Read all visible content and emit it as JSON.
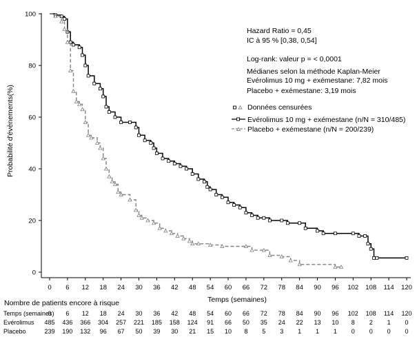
{
  "chart_data": {
    "type": "line",
    "title": "",
    "xlabel": "Temps (semaines)",
    "ylabel": "Probabilité d'évènements(%)",
    "xlim": [
      0,
      120
    ],
    "ylim": [
      0,
      100
    ],
    "xticks": [
      "0",
      "6",
      "12",
      "18",
      "24",
      "30",
      "36",
      "42",
      "48",
      "54",
      "60",
      "66",
      "72",
      "78",
      "84",
      "90",
      "96",
      "102",
      "108",
      "114",
      "120"
    ],
    "yticks": [
      "0",
      "20",
      "40",
      "60",
      "80",
      "100"
    ],
    "grid": false,
    "legend_position": "right",
    "legend_title": "Données censurées",
    "annotations": {
      "hr": "Hazard Ratio = 0,45",
      "ic": "IC à 95 % [0,38, 0,54]",
      "logrank": "Log-rank: valeur p = < 0,0001",
      "medians_title": "Médianes selon la méthode Kaplan-Meier",
      "median_evero": "Evérolimus 10 mg + exémestane: 7,82 mois",
      "median_placebo": "Placebo + exémestane: 3,19 mois"
    },
    "series": [
      {
        "name": "Evérolimus 10 mg + exémestane (n/N = 310/485)",
        "color": "#000000",
        "marker": "square",
        "points": [
          [
            0,
            100
          ],
          [
            2,
            99.5
          ],
          [
            4,
            99
          ],
          [
            5,
            98
          ],
          [
            6,
            93
          ],
          [
            7,
            89
          ],
          [
            8,
            88
          ],
          [
            10,
            87
          ],
          [
            11,
            84
          ],
          [
            12,
            80
          ],
          [
            13,
            76
          ],
          [
            15,
            73
          ],
          [
            17,
            71
          ],
          [
            18,
            68
          ],
          [
            19,
            64
          ],
          [
            20,
            62
          ],
          [
            22,
            60
          ],
          [
            24,
            58
          ],
          [
            27,
            58
          ],
          [
            29,
            56
          ],
          [
            30,
            53
          ],
          [
            32,
            51
          ],
          [
            34,
            50
          ],
          [
            35,
            48
          ],
          [
            36,
            46
          ],
          [
            38,
            44
          ],
          [
            40,
            43
          ],
          [
            42,
            42
          ],
          [
            44,
            41
          ],
          [
            46,
            40
          ],
          [
            48,
            38
          ],
          [
            50,
            36
          ],
          [
            52,
            35
          ],
          [
            53,
            33
          ],
          [
            54,
            32
          ],
          [
            56,
            30
          ],
          [
            58,
            29
          ],
          [
            60,
            27
          ],
          [
            62,
            26
          ],
          [
            64,
            25
          ],
          [
            66,
            23
          ],
          [
            68,
            22
          ],
          [
            70,
            21
          ],
          [
            72,
            21
          ],
          [
            74,
            20
          ],
          [
            78,
            20
          ],
          [
            80,
            19
          ],
          [
            84,
            19
          ],
          [
            86,
            17
          ],
          [
            90,
            16
          ],
          [
            92,
            15
          ],
          [
            96,
            15
          ],
          [
            102,
            15
          ],
          [
            104,
            14
          ],
          [
            106,
            14
          ],
          [
            107,
            11
          ],
          [
            108,
            9
          ],
          [
            109,
            5.5
          ],
          [
            110,
            5.5
          ],
          [
            120,
            5.5
          ]
        ]
      },
      {
        "name": "Placebo + exémestane (n/N = 200/239)",
        "color": "#808080",
        "marker": "triangle",
        "points": [
          [
            0,
            100
          ],
          [
            2,
            99
          ],
          [
            4,
            97
          ],
          [
            5,
            94
          ],
          [
            6,
            89
          ],
          [
            7,
            78
          ],
          [
            8,
            70
          ],
          [
            9,
            66
          ],
          [
            10,
            65
          ],
          [
            11,
            63
          ],
          [
            12,
            58
          ],
          [
            13,
            53
          ],
          [
            14,
            52
          ],
          [
            16,
            50
          ],
          [
            17,
            48
          ],
          [
            18,
            44
          ],
          [
            19,
            40
          ],
          [
            20,
            37
          ],
          [
            21,
            35
          ],
          [
            22,
            34
          ],
          [
            23,
            31
          ],
          [
            24,
            30
          ],
          [
            27,
            28
          ],
          [
            29,
            24
          ],
          [
            30,
            22
          ],
          [
            31,
            21
          ],
          [
            33,
            20
          ],
          [
            35,
            19
          ],
          [
            37,
            17
          ],
          [
            39,
            16
          ],
          [
            41,
            15
          ],
          [
            43,
            14
          ],
          [
            45,
            13
          ],
          [
            47,
            12
          ],
          [
            48,
            11
          ],
          [
            50,
            11
          ],
          [
            54,
            10.5
          ],
          [
            58,
            10
          ],
          [
            66,
            10
          ],
          [
            68,
            8.5
          ],
          [
            72,
            8.5
          ],
          [
            74,
            6.5
          ],
          [
            78,
            6
          ],
          [
            81,
            4.5
          ],
          [
            84,
            3
          ],
          [
            96,
            2
          ],
          [
            98,
            2
          ]
        ]
      }
    ]
  },
  "risk_table": {
    "title": "Nombre de patients encore à risque",
    "header_label": "Temps (semaines)",
    "rows": [
      {
        "label": "Evérolimus",
        "values": [
          "485",
          "436",
          "366",
          "304",
          "257",
          "221",
          "185",
          "158",
          "124",
          "91",
          "66",
          "50",
          "35",
          "24",
          "22",
          "13",
          "10",
          "8",
          "2",
          "1",
          "0"
        ]
      },
      {
        "label": "Placebo",
        "values": [
          "239",
          "190",
          "132",
          "96",
          "67",
          "50",
          "39",
          "30",
          "21",
          "15",
          "10",
          "8",
          "5",
          "3",
          "1",
          "1",
          "1",
          "0",
          "0",
          "0",
          "0"
        ]
      }
    ]
  }
}
